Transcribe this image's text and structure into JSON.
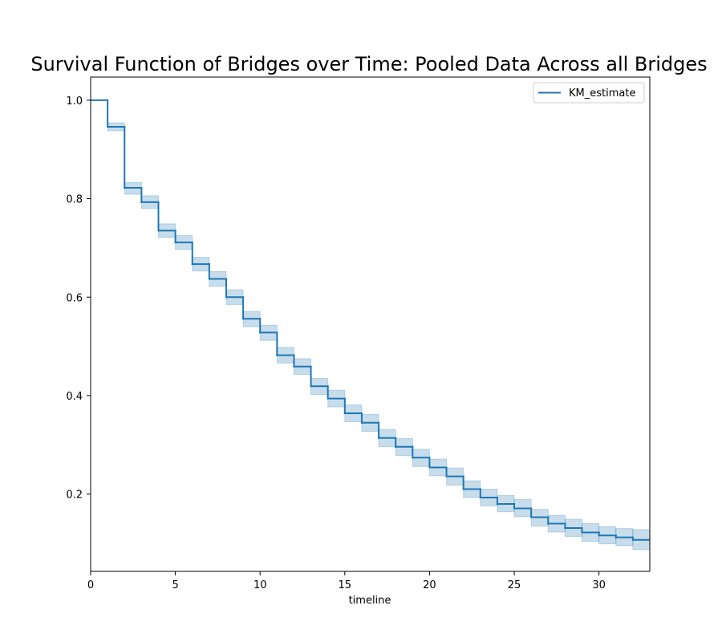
{
  "chart_data": {
    "type": "line",
    "title": "Survival Function of Bridges over Time: Pooled Data Across all Bridges",
    "xlabel": "timeline",
    "ylabel": "",
    "xlim": [
      0,
      33
    ],
    "ylim": [
      0.043,
      1.047
    ],
    "xticks": [
      0,
      5,
      10,
      15,
      20,
      25,
      30
    ],
    "yticks": [
      0.2,
      0.4,
      0.6,
      0.8,
      1.0
    ],
    "xtick_labels": [
      "0",
      "5",
      "10",
      "15",
      "20",
      "25",
      "30"
    ],
    "ytick_labels": [
      "0.2",
      "0.4",
      "0.6",
      "0.8",
      "1.0"
    ],
    "grid": false,
    "legend_position": "top-right",
    "series": [
      {
        "name": "KM_estimate",
        "color": "#1f77b4",
        "band_color": "#1f77b4",
        "x": [
          0,
          1,
          2,
          3,
          4,
          5,
          6,
          7,
          8,
          9,
          10,
          11,
          12,
          13,
          14,
          15,
          16,
          17,
          18,
          19,
          20,
          21,
          22,
          23,
          24,
          25,
          26,
          27,
          28,
          29,
          30,
          31,
          32
        ],
        "y": [
          1.0,
          0.946,
          0.822,
          0.793,
          0.735,
          0.711,
          0.667,
          0.637,
          0.6,
          0.556,
          0.528,
          0.482,
          0.459,
          0.419,
          0.394,
          0.364,
          0.345,
          0.314,
          0.296,
          0.274,
          0.254,
          0.236,
          0.21,
          0.193,
          0.18,
          0.171,
          0.153,
          0.14,
          0.131,
          0.122,
          0.116,
          0.112,
          0.107
        ],
        "ci_lower": [
          1.0,
          0.938,
          0.809,
          0.78,
          0.721,
          0.697,
          0.653,
          0.622,
          0.585,
          0.54,
          0.512,
          0.466,
          0.443,
          0.402,
          0.377,
          0.347,
          0.327,
          0.296,
          0.278,
          0.256,
          0.237,
          0.218,
          0.193,
          0.176,
          0.164,
          0.154,
          0.135,
          0.123,
          0.114,
          0.104,
          0.099,
          0.095,
          0.087
        ],
        "ci_upper": [
          1.0,
          0.954,
          0.833,
          0.806,
          0.749,
          0.725,
          0.681,
          0.652,
          0.615,
          0.571,
          0.543,
          0.498,
          0.475,
          0.435,
          0.411,
          0.381,
          0.362,
          0.331,
          0.313,
          0.291,
          0.271,
          0.253,
          0.227,
          0.21,
          0.197,
          0.189,
          0.169,
          0.157,
          0.149,
          0.14,
          0.134,
          0.13,
          0.128
        ]
      }
    ]
  }
}
